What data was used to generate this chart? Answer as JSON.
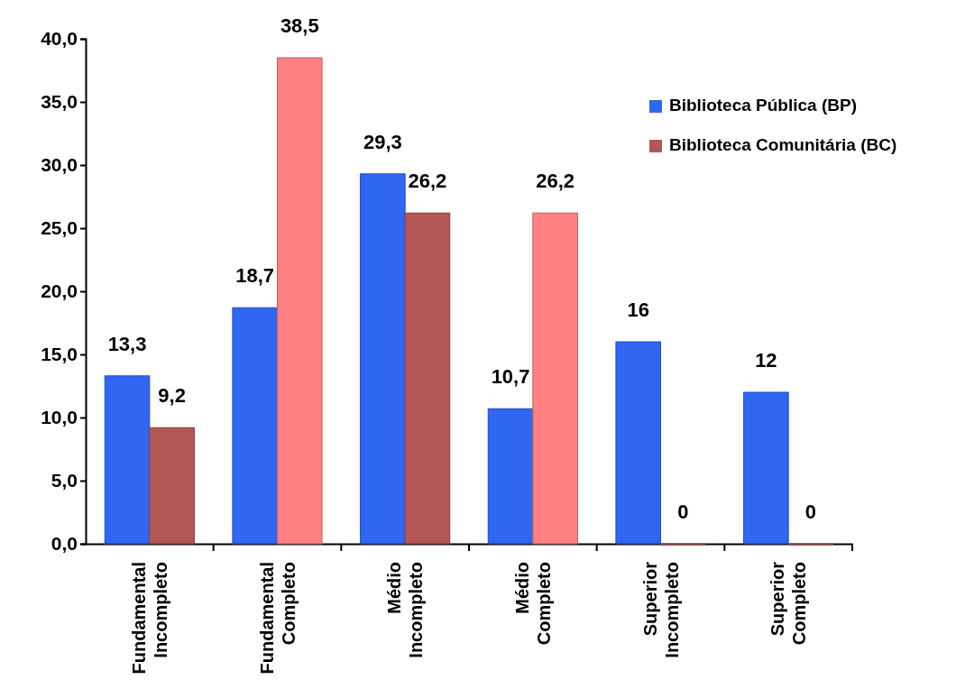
{
  "chart_data": {
    "type": "bar",
    "categories": [
      "Fundamental Incompleto",
      "Fundamental Completo",
      "Médio Incompleto",
      "Médio Completo",
      "Superior Incompleto",
      "Superior Completo"
    ],
    "series": [
      {
        "name": "Biblioteca Pública (BP)",
        "color": "#2f66f2",
        "values": [
          13.3,
          18.7,
          29.3,
          10.7,
          16,
          12
        ],
        "value_labels": [
          "13,3",
          "18,7",
          "29,3",
          "10,7",
          "16",
          "12"
        ]
      },
      {
        "name": "Biblioteca Comunitária (BC)",
        "color": "#b35656",
        "colors": [
          "#b35656",
          "#ff8080",
          "#b35656",
          "#ff8080",
          "#b35656",
          "#b35656"
        ],
        "values": [
          9.2,
          38.5,
          26.2,
          26.2,
          0,
          0
        ],
        "value_labels": [
          "9,2",
          "38,5",
          "26,2",
          "26,2",
          "0",
          "0"
        ]
      }
    ],
    "ylim": [
      0,
      40
    ],
    "yticks": [
      {
        "value": 0,
        "label": "0,0"
      },
      {
        "value": 5,
        "label": "5,0"
      },
      {
        "value": 10,
        "label": "10,0"
      },
      {
        "value": 15,
        "label": "15,0"
      },
      {
        "value": 20,
        "label": "20,0"
      },
      {
        "value": 25,
        "label": "25,0"
      },
      {
        "value": 30,
        "label": "30,0"
      },
      {
        "value": 35,
        "label": "35,0"
      },
      {
        "value": 40,
        "label": "40,0"
      }
    ],
    "grid": false,
    "legend": "top right"
  }
}
